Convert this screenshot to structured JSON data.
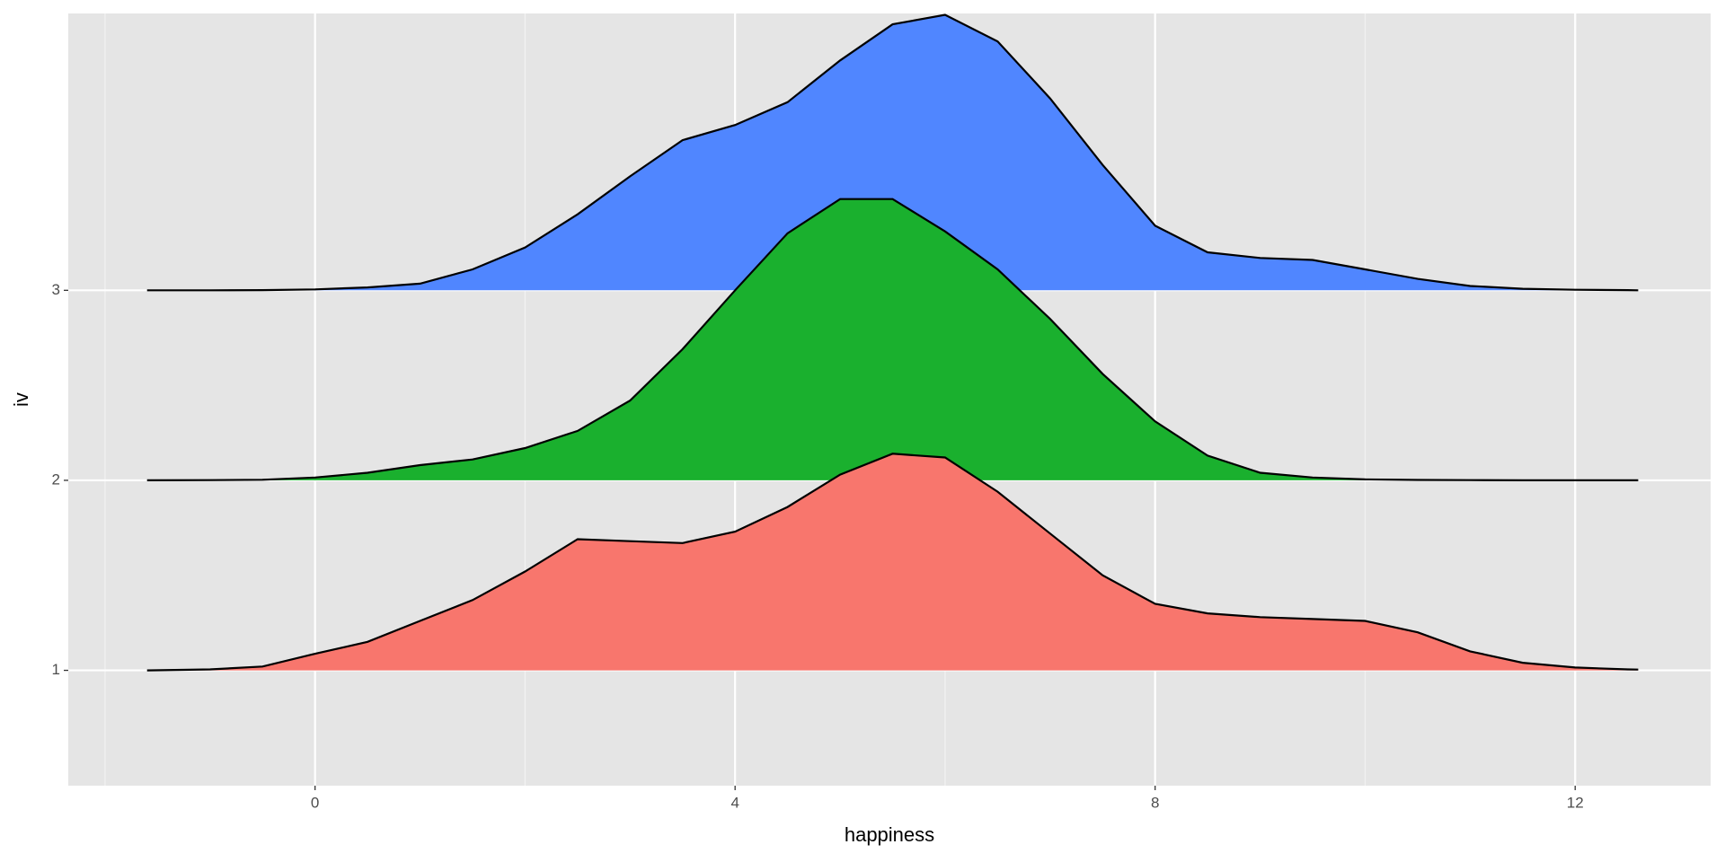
{
  "chart_data": {
    "type": "ridgeline",
    "xlabel": "happiness",
    "ylabel": "iv",
    "xlim": [
      -2.35,
      13.29
    ],
    "xticks": [
      0,
      4,
      8,
      12
    ],
    "xminor": [
      -2,
      2,
      6,
      10
    ],
    "ylim": [
      0.393,
      4.457
    ],
    "yticks": [
      1,
      2,
      3
    ],
    "grid": true,
    "line_color": "#000000",
    "x": [
      -1.6,
      -1,
      -0.5,
      0,
      0.5,
      1,
      1.5,
      2,
      2.5,
      3,
      3.5,
      4,
      4.5,
      5,
      5.5,
      6,
      6.5,
      7,
      7.5,
      8,
      8.5,
      9,
      9.5,
      10,
      10.5,
      11,
      11.5,
      12,
      12.5,
      12.6
    ],
    "series": [
      {
        "color": "#f8766d",
        "values": [
          0,
          0.005,
          0.02,
          0.087,
          0.15,
          0.26,
          0.37,
          0.52,
          0.69,
          0.68,
          0.67,
          0.73,
          0.86,
          1.03,
          1.14,
          1.12,
          0.94,
          0.72,
          0.5,
          0.35,
          0.3,
          0.28,
          0.27,
          0.26,
          0.2,
          0.1,
          0.04,
          0.015,
          0.005,
          0.004
        ]
      },
      {
        "color": "#1ab02e",
        "values": [
          0,
          0.001,
          0.003,
          0.015,
          0.04,
          0.08,
          0.11,
          0.17,
          0.26,
          0.42,
          0.69,
          1.0,
          1.3,
          1.48,
          1.48,
          1.31,
          1.11,
          0.85,
          0.56,
          0.31,
          0.13,
          0.04,
          0.015,
          0.005,
          0.002,
          0.001,
          0,
          0,
          0,
          0
        ]
      },
      {
        "color": "#5086ff",
        "values": [
          0,
          0,
          0.001,
          0.005,
          0.015,
          0.035,
          0.11,
          0.225,
          0.4,
          0.6,
          0.79,
          0.87,
          0.99,
          1.21,
          1.4,
          1.45,
          1.31,
          1.01,
          0.66,
          0.34,
          0.2,
          0.17,
          0.16,
          0.11,
          0.06,
          0.023,
          0.008,
          0.003,
          0.001,
          0
        ]
      }
    ]
  }
}
